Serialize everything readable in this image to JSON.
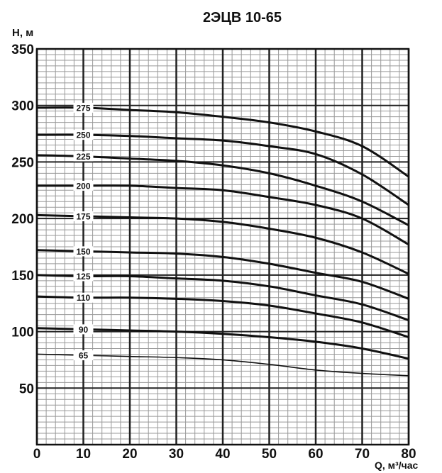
{
  "chart_data": {
    "type": "line",
    "title": "2ЭЦВ 10-65",
    "xlabel": "Q, м³/час",
    "ylabel": "H, м",
    "xlim": [
      0,
      80
    ],
    "ylim": [
      0,
      350
    ],
    "x_ticks": [
      0,
      10,
      20,
      30,
      40,
      50,
      60,
      70,
      80
    ],
    "y_ticks": [
      50,
      100,
      150,
      200,
      250,
      300,
      350
    ],
    "grid": true,
    "x": [
      0,
      10,
      20,
      30,
      40,
      50,
      60,
      70,
      80
    ],
    "series": [
      {
        "name": "275",
        "values": [
          298,
          298,
          296,
          294,
          290,
          285,
          277,
          264,
          237
        ]
      },
      {
        "name": "250",
        "values": [
          274,
          274,
          273,
          271,
          269,
          264,
          257,
          239,
          212
        ]
      },
      {
        "name": "225",
        "values": [
          256,
          255,
          253,
          251,
          247,
          240,
          229,
          215,
          194
        ]
      },
      {
        "name": "200",
        "values": [
          229,
          229,
          229,
          227,
          225,
          219,
          212,
          200,
          177
        ]
      },
      {
        "name": "175",
        "values": [
          203,
          202,
          201,
          200,
          197,
          191,
          183,
          170,
          151
        ]
      },
      {
        "name": "150",
        "values": [
          172,
          171,
          170,
          169,
          166,
          160,
          152,
          144,
          129
        ]
      },
      {
        "name": "125",
        "values": [
          150,
          149,
          149,
          147,
          145,
          140,
          132,
          124,
          110
        ]
      },
      {
        "name": "110",
        "values": [
          131,
          130,
          130,
          129,
          127,
          123,
          116,
          108,
          95
        ]
      },
      {
        "name": "90",
        "values": [
          103,
          102,
          101,
          100,
          98,
          95,
          91,
          85,
          76
        ]
      },
      {
        "name": "65",
        "values": [
          80,
          79,
          78,
          77,
          75,
          71,
          66,
          63,
          61
        ]
      }
    ],
    "line_color": "#111111",
    "grid_color": "#999999"
  }
}
